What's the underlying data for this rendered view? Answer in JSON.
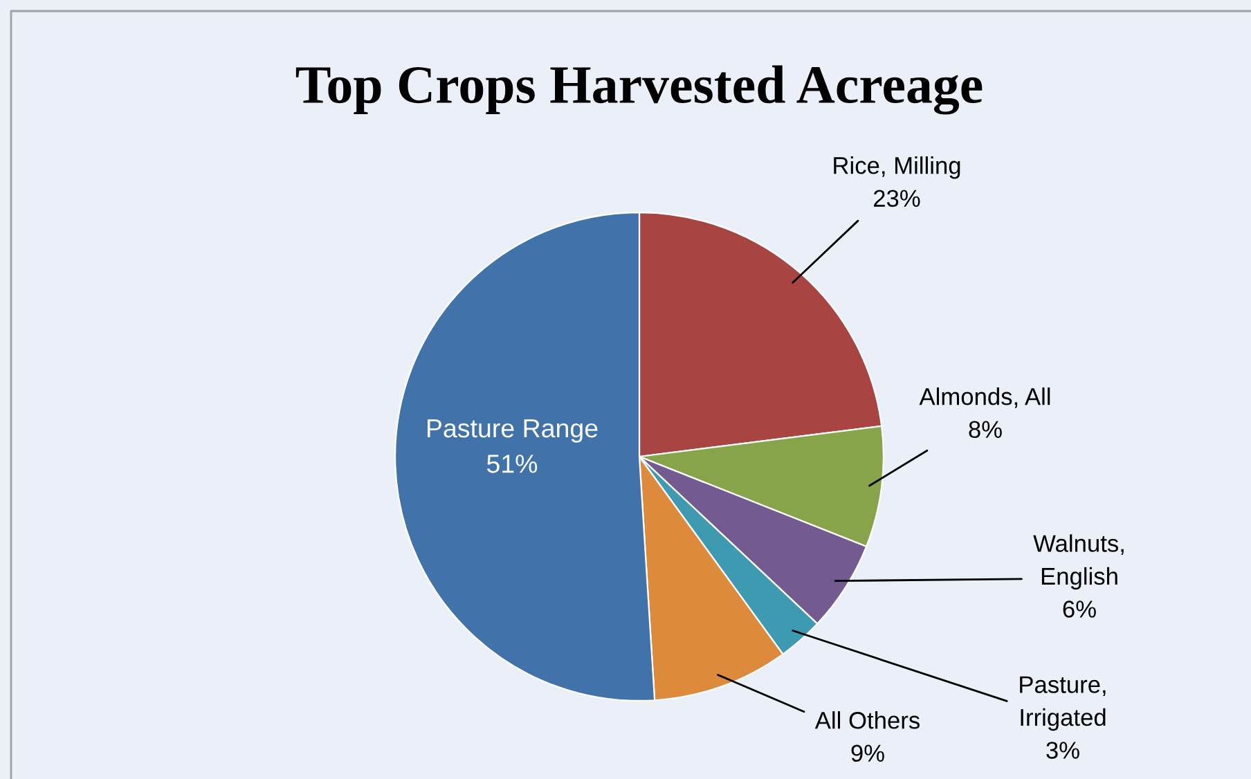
{
  "chart_data": {
    "type": "pie",
    "title": "Top Crops Harvested Acreage",
    "categories": [
      "Rice, Milling",
      "Almonds, All",
      "Walnuts, English",
      "Pasture, Irrigated",
      "All Others",
      "Pasture Range"
    ],
    "values": [
      23,
      8,
      6,
      3,
      9,
      51
    ],
    "value_labels": [
      "23%",
      "8%",
      "6%",
      "3%",
      "9%",
      "51%"
    ],
    "colors": [
      "#a84442",
      "#88a44a",
      "#735a91",
      "#3e9ab0",
      "#dd8a3c",
      "#4172a9"
    ],
    "legend": false
  }
}
